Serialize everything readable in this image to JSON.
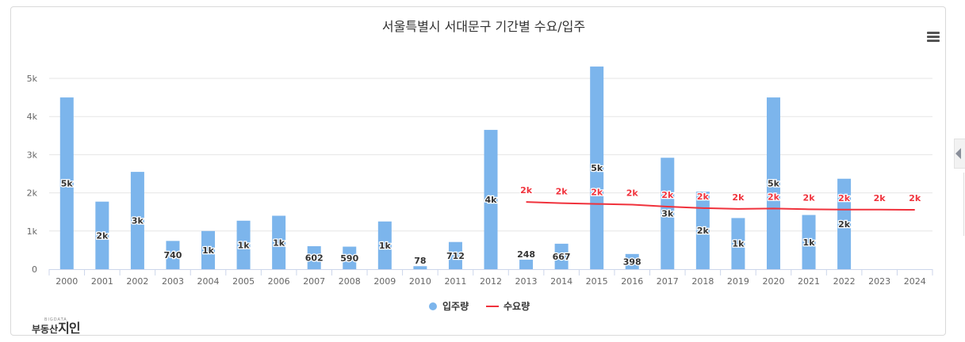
{
  "chart_data": {
    "type": "bar+line",
    "title": "서울특별시 서대문구 기간별 수요/입주",
    "categories": [
      "2000",
      "2001",
      "2002",
      "2003",
      "2004",
      "2005",
      "2006",
      "2007",
      "2008",
      "2009",
      "2010",
      "2011",
      "2012",
      "2013",
      "2014",
      "2015",
      "2016",
      "2017",
      "2018",
      "2019",
      "2020",
      "2021",
      "2022",
      "2023",
      "2024"
    ],
    "y_ticks": [
      0,
      1000,
      2000,
      3000,
      4000,
      5000
    ],
    "y_tick_labels": [
      "0",
      "1k",
      "2k",
      "3k",
      "4k",
      "5k"
    ],
    "ylim": [
      0,
      5000
    ],
    "grid": true,
    "legend_position": "bottom-center",
    "series": [
      {
        "name": "입주량",
        "type": "bar",
        "color": "#7cb5ec",
        "values": [
          4500,
          1770,
          2550,
          740,
          1000,
          1270,
          1400,
          602,
          590,
          1250,
          78,
          712,
          3650,
          248,
          667,
          5310,
          398,
          2920,
          2030,
          1340,
          4500,
          1420,
          2370,
          null,
          null
        ],
        "labels": [
          "5k",
          "2k",
          "3k",
          "740",
          "1k",
          "1k",
          "1k",
          "602",
          "590",
          "1k",
          "78",
          "712",
          "4k",
          "248",
          "667",
          "5k",
          "398",
          "3k",
          "2k",
          "1k",
          "5k",
          "1k",
          "2k",
          "",
          ""
        ]
      },
      {
        "name": "수요량",
        "type": "line",
        "color": "#f0323c",
        "values": [
          null,
          null,
          null,
          null,
          null,
          null,
          null,
          null,
          null,
          null,
          null,
          null,
          null,
          1760,
          1730,
          1710,
          1690,
          1640,
          1600,
          1580,
          1590,
          1570,
          1560,
          1560,
          1555
        ],
        "labels": [
          "",
          "",
          "",
          "",
          "",
          "",
          "",
          "",
          "",
          "",
          "",
          "",
          "",
          "2k",
          "2k",
          "2k",
          "2k",
          "2k",
          "2k",
          "2k",
          "2k",
          "2k",
          "2k",
          "2k",
          "2k"
        ]
      }
    ]
  },
  "toolbar": {
    "menu_icon": "hamburger-menu-icon"
  },
  "logo": {
    "top_text": "BIGDATA",
    "main_text": "부동산",
    "big_text": "지인"
  }
}
